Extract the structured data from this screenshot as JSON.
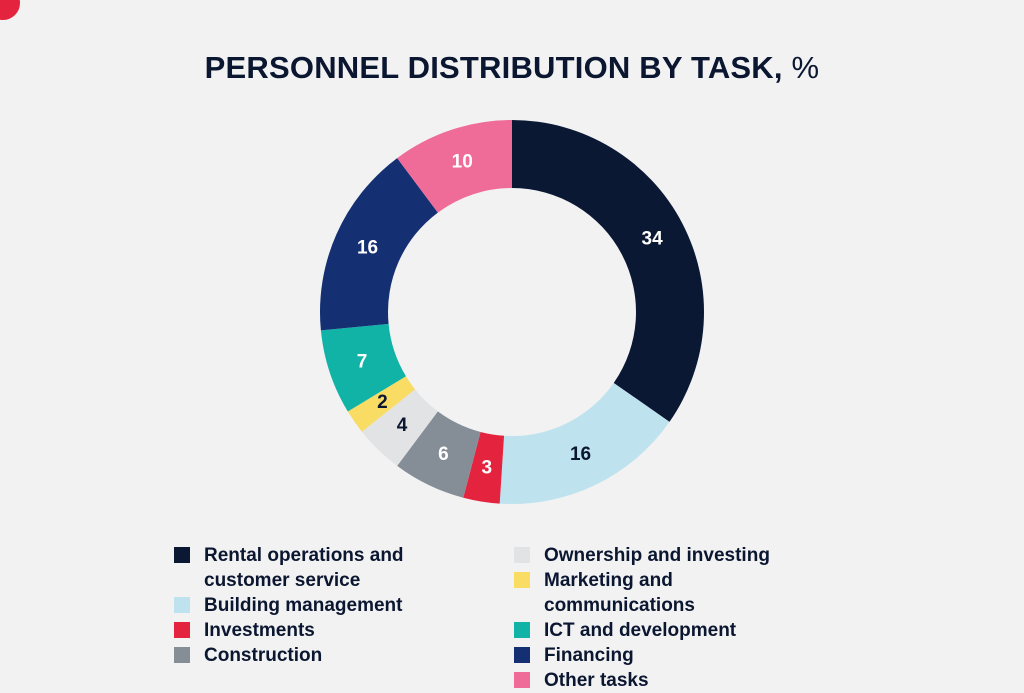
{
  "colors": {
    "background": "#f2f2f3",
    "corner_mark": "#e4233f",
    "title": "#0b1630"
  },
  "title": {
    "text": "PERSONNEL DISTRIBUTION BY TASK,",
    "unit": "%"
  },
  "chart_data": {
    "type": "pie",
    "variant": "donut",
    "title": "PERSONNEL DISTRIBUTION BY TASK, %",
    "unit": "%",
    "slices": [
      {
        "label": "Rental operations and customer service",
        "value": 34,
        "color": "#0a1833",
        "text_color": "#ffffff"
      },
      {
        "label": "Building management",
        "value": 16,
        "color": "#bfe3ee",
        "text_color": "#0b1630"
      },
      {
        "label": "Investments",
        "value": 3,
        "color": "#e4233f",
        "text_color": "#ffffff"
      },
      {
        "label": "Construction",
        "value": 6,
        "color": "#858d96",
        "text_color": "#ffffff"
      },
      {
        "label": "Ownership and investing",
        "value": 4,
        "color": "#e2e3e4",
        "text_color": "#0b1630"
      },
      {
        "label": "Marketing and communications",
        "value": 2,
        "color": "#f8dc63",
        "text_color": "#0b1630"
      },
      {
        "label": "ICT and development",
        "value": 7,
        "color": "#10b3a6",
        "text_color": "#ffffff"
      },
      {
        "label": "Financing",
        "value": 16,
        "color": "#142f72",
        "text_color": "#ffffff"
      },
      {
        "label": "Other tasks",
        "value": 10,
        "color": "#ef6c98",
        "text_color": "#ffffff"
      }
    ],
    "legend_placement": "bottom"
  },
  "legend": {
    "left": [
      {
        "label": "Rental operations and customer service",
        "color": "#0a1833"
      },
      {
        "label": "Building management",
        "color": "#bfe3ee"
      },
      {
        "label": "Investments",
        "color": "#e4233f"
      },
      {
        "label": "Construction",
        "color": "#858d96"
      }
    ],
    "right": [
      {
        "label": "Ownership and investing",
        "color": "#e2e3e4"
      },
      {
        "label": "Marketing and communications",
        "color": "#f8dc63"
      },
      {
        "label": "ICT and development",
        "color": "#10b3a6"
      },
      {
        "label": "Financing",
        "color": "#142f72"
      },
      {
        "label": "Other tasks",
        "color": "#ef6c98"
      }
    ]
  }
}
